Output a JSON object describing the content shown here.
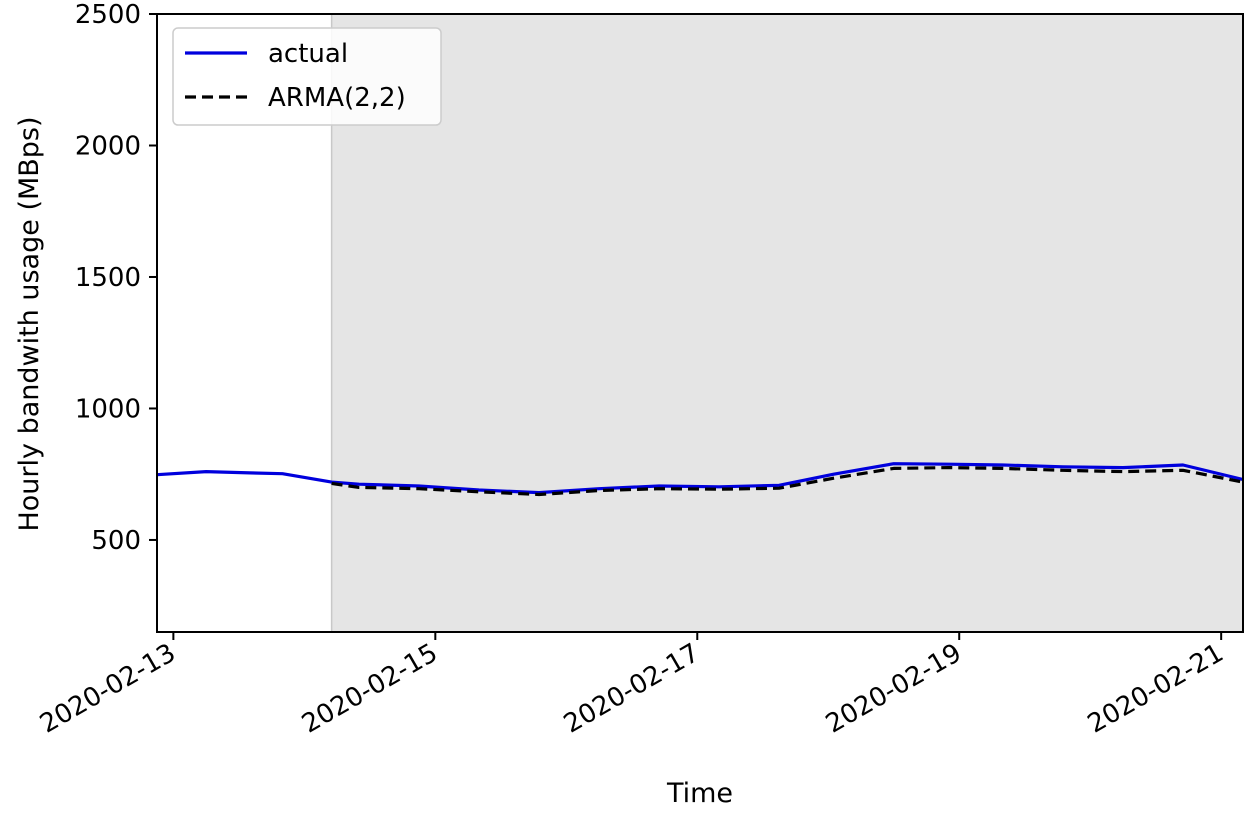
{
  "chart_data": {
    "type": "line",
    "title": "",
    "xlabel": "Time",
    "ylabel": "Hourly bandwith usage (MBps)",
    "xlim": [
      "2020-02-12T21:00",
      "2020-02-21T04:00"
    ],
    "ylim": [
      150,
      2500
    ],
    "yticks": [
      500,
      1000,
      1500,
      2000,
      2500
    ],
    "xticks": [
      "2020-02-13",
      "2020-02-15",
      "2020-02-17",
      "2020-02-19",
      "2020-02-21"
    ],
    "grid": false,
    "legend_position": "upper-left",
    "shaded_region": {
      "from": "2020-02-14T05:00",
      "to": "2020-02-21T04:00",
      "color": "#e5e5e5"
    },
    "series": [
      {
        "name": "actual",
        "style": "solid",
        "color": "#0000dd",
        "x": [
          "2020-02-12T21:00",
          "2020-02-13T06:00",
          "2020-02-13T14:00",
          "2020-02-13T20:00",
          "2020-02-14T05:00",
          "2020-02-14T10:00",
          "2020-02-14T21:00",
          "2020-02-15T08:00",
          "2020-02-15T19:00",
          "2020-02-16T06:00",
          "2020-02-16T17:00",
          "2020-02-17T04:00",
          "2020-02-17T15:00",
          "2020-02-18T01:00",
          "2020-02-18T12:00",
          "2020-02-18T22:00",
          "2020-02-19T08:00",
          "2020-02-19T19:00",
          "2020-02-20T06:00",
          "2020-02-20T17:00",
          "2020-02-21T04:00"
        ],
        "y": [
          748,
          760,
          755,
          752,
          720,
          712,
          705,
          690,
          680,
          695,
          705,
          702,
          708,
          750,
          790,
          788,
          785,
          778,
          775,
          785,
          730
        ]
      },
      {
        "name": "ARMA(2,2)",
        "style": "dashed",
        "color": "#000000",
        "x": [
          "2020-02-14T05:00",
          "2020-02-14T10:00",
          "2020-02-14T21:00",
          "2020-02-15T08:00",
          "2020-02-15T19:00",
          "2020-02-16T06:00",
          "2020-02-16T17:00",
          "2020-02-17T04:00",
          "2020-02-17T15:00",
          "2020-02-18T01:00",
          "2020-02-18T12:00",
          "2020-02-18T22:00",
          "2020-02-19T08:00",
          "2020-02-19T19:00",
          "2020-02-20T06:00",
          "2020-02-20T17:00",
          "2020-02-21T04:00"
        ],
        "y": [
          715,
          700,
          695,
          683,
          673,
          688,
          695,
          693,
          697,
          735,
          772,
          775,
          772,
          765,
          760,
          765,
          720
        ]
      }
    ]
  }
}
